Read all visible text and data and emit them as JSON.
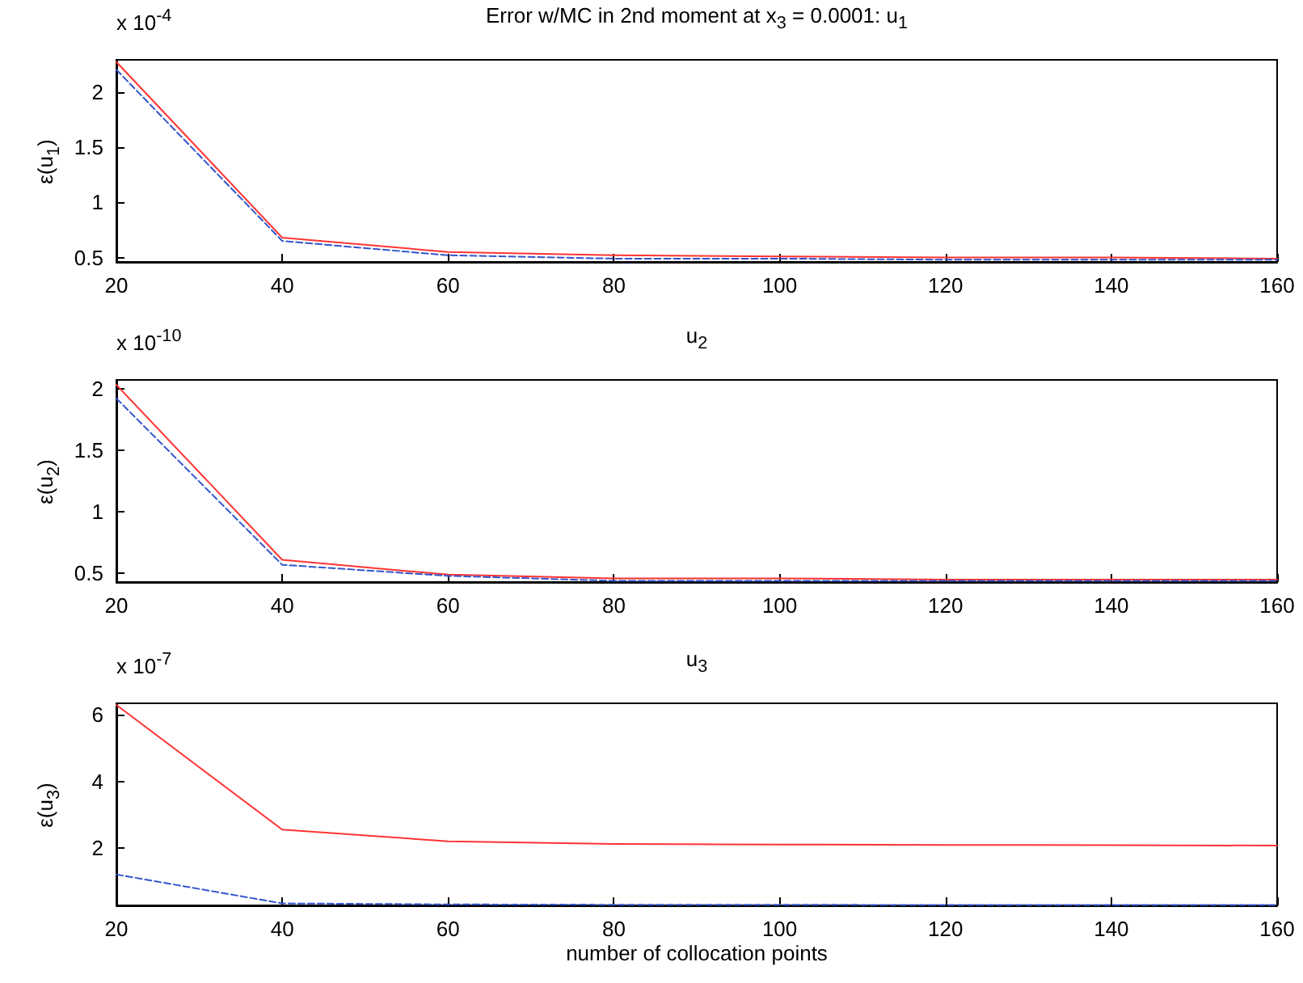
{
  "chart_data": [
    {
      "type": "line",
      "title": "Error w/MC in 2nd moment at x$_{3}$ = 0.0001: u$_{1}$",
      "ylabel": "ε(u$_{1}$)",
      "annotations": [
        "x 10$^{-4}$"
      ],
      "x": [
        20,
        40,
        60,
        80,
        100,
        120,
        140,
        160
      ],
      "xlim": [
        20,
        160
      ],
      "xticks": [
        20,
        40,
        60,
        80,
        100,
        120,
        140,
        160
      ],
      "ylim": [
        0.46,
        2.29
      ],
      "yticks": [
        0.5,
        1,
        1.5,
        2
      ],
      "grid": false,
      "marker": "none",
      "series": [
        {
          "color": "#ff3333",
          "line_style": "solid",
          "values": [
            2.27,
            0.68,
            0.55,
            0.52,
            0.51,
            0.5,
            0.5,
            0.49
          ]
        },
        {
          "color": "#3355cc",
          "line_style": "dashed",
          "values": [
            2.2,
            0.65,
            0.52,
            0.49,
            0.49,
            0.48,
            0.48,
            0.48
          ]
        }
      ]
    },
    {
      "type": "line",
      "title": "u$_{2}$",
      "ylabel": "ε(u$_{2}$)",
      "annotations": [
        "x 10$^{-10}$"
      ],
      "x": [
        20,
        40,
        60,
        80,
        100,
        120,
        140,
        160
      ],
      "xlim": [
        20,
        160
      ],
      "xticks": [
        20,
        40,
        60,
        80,
        100,
        120,
        140,
        160
      ],
      "ylim": [
        0.43,
        2.07
      ],
      "yticks": [
        0.5,
        1,
        1.5,
        2
      ],
      "grid": false,
      "marker": "none",
      "series": [
        {
          "color": "#ff3333",
          "line_style": "solid",
          "values": [
            2.03,
            0.61,
            0.49,
            0.46,
            0.46,
            0.45,
            0.45,
            0.45
          ]
        },
        {
          "color": "#3355cc",
          "line_style": "dashed",
          "values": [
            1.92,
            0.57,
            0.48,
            0.44,
            0.44,
            0.44,
            0.44,
            0.44
          ]
        }
      ]
    },
    {
      "type": "line",
      "title": "u$_{3}$",
      "xlabel": "number of collocation points",
      "ylabel": "ε(u$_{3}$)",
      "annotations": [
        "x 10$^{-7}$"
      ],
      "x": [
        20,
        40,
        60,
        80,
        100,
        120,
        140,
        160
      ],
      "xlim": [
        20,
        160
      ],
      "xticks": [
        20,
        40,
        60,
        80,
        100,
        120,
        140,
        160
      ],
      "ylim": [
        0.27,
        6.35
      ],
      "yticks": [
        2,
        4,
        6
      ],
      "grid": false,
      "marker": "none",
      "series": [
        {
          "color": "#ff3333",
          "line_style": "solid",
          "values": [
            6.3,
            2.55,
            2.2,
            2.12,
            2.1,
            2.09,
            2.08,
            2.07
          ]
        },
        {
          "color": "#3355cc",
          "line_style": "dashed",
          "values": [
            1.2,
            0.33,
            0.3,
            0.29,
            0.29,
            0.28,
            0.28,
            0.28
          ]
        }
      ]
    }
  ]
}
